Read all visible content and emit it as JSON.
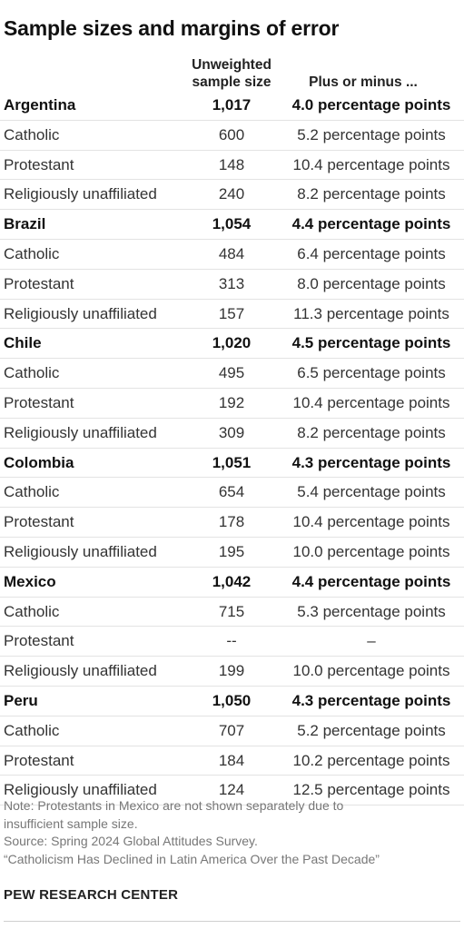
{
  "title": "Sample sizes and margins of error",
  "columns": {
    "size_line1": "Unweighted",
    "size_line2": "sample size",
    "moe": "Plus or minus ..."
  },
  "chart_data": {
    "type": "table",
    "title": "Sample sizes and margins of error",
    "columns": [
      "",
      "Unweighted sample size",
      "Plus or minus ..."
    ],
    "rows": [
      {
        "label": "Argentina",
        "kind": "country",
        "size": "1,017",
        "moe": "4.0 percentage points"
      },
      {
        "label": "Catholic",
        "kind": "group",
        "size": "600",
        "moe": "5.2 percentage points"
      },
      {
        "label": "Protestant",
        "kind": "group",
        "size": "148",
        "moe": "10.4 percentage points"
      },
      {
        "label": "Religiously unaffiliated",
        "kind": "group",
        "size": "240",
        "moe": "8.2 percentage points"
      },
      {
        "label": "Brazil",
        "kind": "country",
        "size": "1,054",
        "moe": "4.4 percentage points"
      },
      {
        "label": "Catholic",
        "kind": "group",
        "size": "484",
        "moe": "6.4 percentage points"
      },
      {
        "label": "Protestant",
        "kind": "group",
        "size": "313",
        "moe": "8.0 percentage points"
      },
      {
        "label": "Religiously unaffiliated",
        "kind": "group",
        "size": "157",
        "moe": "11.3 percentage points"
      },
      {
        "label": "Chile",
        "kind": "country",
        "size": "1,020",
        "moe": "4.5 percentage points"
      },
      {
        "label": "Catholic",
        "kind": "group",
        "size": "495",
        "moe": "6.5 percentage points"
      },
      {
        "label": "Protestant",
        "kind": "group",
        "size": "192",
        "moe": "10.4 percentage points"
      },
      {
        "label": "Religiously unaffiliated",
        "kind": "group",
        "size": "309",
        "moe": "8.2 percentage points"
      },
      {
        "label": "Colombia",
        "kind": "country",
        "size": "1,051",
        "moe": "4.3 percentage points"
      },
      {
        "label": "Catholic",
        "kind": "group",
        "size": "654",
        "moe": "5.4 percentage points"
      },
      {
        "label": "Protestant",
        "kind": "group",
        "size": "178",
        "moe": "10.4 percentage points"
      },
      {
        "label": "Religiously unaffiliated",
        "kind": "group",
        "size": "195",
        "moe": "10.0 percentage points"
      },
      {
        "label": "Mexico",
        "kind": "country",
        "size": "1,042",
        "moe": "4.4 percentage points"
      },
      {
        "label": "Catholic",
        "kind": "group",
        "size": "715",
        "moe": "5.3 percentage points"
      },
      {
        "label": "Protestant",
        "kind": "group",
        "size": "--",
        "moe": "–"
      },
      {
        "label": "Religiously unaffiliated",
        "kind": "group",
        "size": "199",
        "moe": "10.0 percentage points"
      },
      {
        "label": "Peru",
        "kind": "country",
        "size": "1,050",
        "moe": "4.3 percentage points"
      },
      {
        "label": "Catholic",
        "kind": "group",
        "size": "707",
        "moe": "5.2 percentage points"
      },
      {
        "label": "Protestant",
        "kind": "group",
        "size": "184",
        "moe": "10.2 percentage points"
      },
      {
        "label": "Religiously unaffiliated",
        "kind": "group",
        "size": "124",
        "moe": "12.5 percentage points"
      }
    ]
  },
  "notes": {
    "note_line1": "Note: Protestants in Mexico are not shown separately due to",
    "note_line2": "insufficient sample size.",
    "source": "Source: Spring 2024 Global Attitudes Survey.",
    "report": "“Catholicism Has Declined in Latin America Over the Past Decade”"
  },
  "brand": "PEW RESEARCH CENTER"
}
